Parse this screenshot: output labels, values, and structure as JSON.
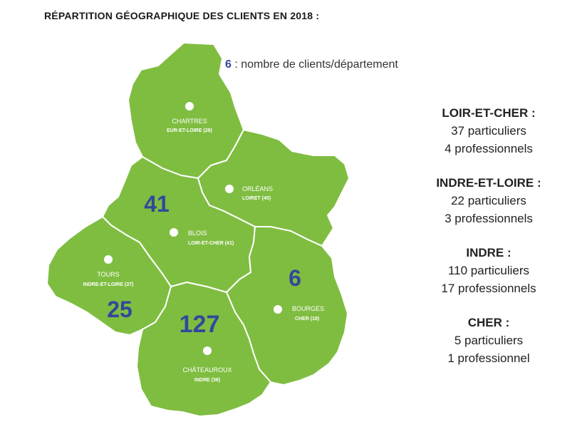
{
  "title": "RÉPARTITION GÉOGRAPHIQUE DES CLIENTS EN 2018 :",
  "legend": {
    "value": "6",
    "text": " : nombre de clients/département"
  },
  "colors": {
    "region": "#7fbd41",
    "count": "#33489a",
    "border": "#ffffff"
  },
  "map": {
    "departments": [
      {
        "id": "eure-et-loir",
        "city": "CHARTRES",
        "sub": "EUR-ET-LOIRE (28)",
        "count": ""
      },
      {
        "id": "loiret",
        "city": "ORLÉANS",
        "sub": "LOIRET (45)",
        "count": ""
      },
      {
        "id": "loir-et-cher",
        "city": "BLOIS",
        "sub": "LOIR-ET-CHER (41)",
        "count": "41"
      },
      {
        "id": "indre-et-loire",
        "city": "TOURS",
        "sub": "INDRE-ET-LOIRE (37)",
        "count": "25"
      },
      {
        "id": "cher",
        "city": "BOURGES",
        "sub": "CHER (18)",
        "count": "6"
      },
      {
        "id": "indre",
        "city": "CHÂTEAUROUX",
        "sub": "INDRE (36)",
        "count": "127"
      }
    ]
  },
  "stats": [
    {
      "name": "LOIR-ET-CHER :",
      "lines": [
        "37 particuliers",
        "4 professionnels"
      ]
    },
    {
      "name": "INDRE-ET-LOIRE :",
      "lines": [
        "22 particuliers",
        "3 professionnels"
      ]
    },
    {
      "name": "INDRE :",
      "lines": [
        "110 particuliers",
        "17 professionnels"
      ]
    },
    {
      "name": "CHER :",
      "lines": [
        "5 particuliers",
        "1 professionnel"
      ]
    }
  ]
}
